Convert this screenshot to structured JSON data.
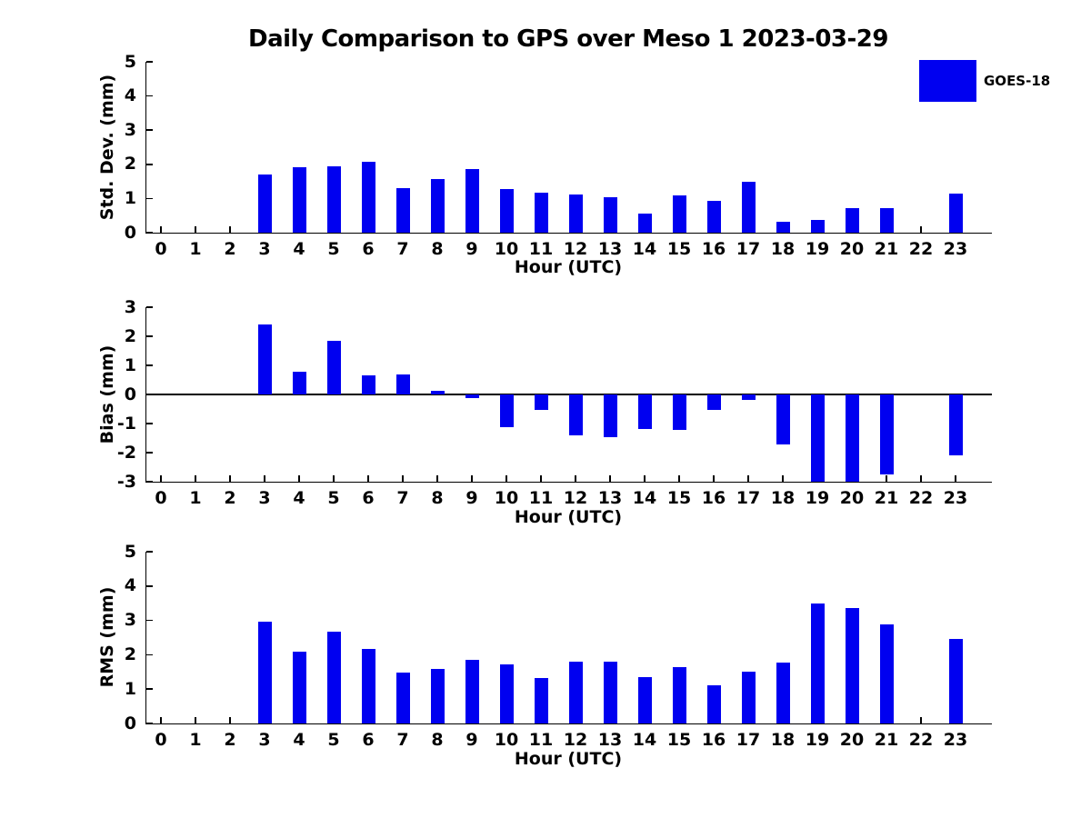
{
  "title": "Daily Comparison to GPS over Meso 1 2023-03-29",
  "legend": {
    "label": "GOES-18",
    "position": "top-right"
  },
  "colors": {
    "bar": "#0000F0",
    "axis": "#000000",
    "background": "#FFFFFF",
    "text": "#000000"
  },
  "chart_data": [
    {
      "type": "bar",
      "series_name": "GOES-18",
      "ylabel": "Std. Dev. (mm)",
      "xlabel": "Hour (UTC)",
      "x": [
        0,
        1,
        2,
        3,
        4,
        5,
        6,
        7,
        8,
        9,
        10,
        11,
        12,
        13,
        14,
        15,
        16,
        17,
        18,
        19,
        20,
        21,
        22,
        23
      ],
      "values": [
        0,
        0,
        0,
        1.69,
        1.92,
        1.95,
        2.07,
        1.29,
        1.56,
        1.85,
        1.27,
        1.18,
        1.11,
        1.03,
        0.55,
        1.1,
        0.93,
        1.48,
        0.31,
        0.37,
        0.72,
        0.72,
        0,
        1.15
      ],
      "ylim": [
        0,
        5
      ],
      "yticks": [
        0,
        1,
        2,
        3,
        4,
        5
      ],
      "grid": false
    },
    {
      "type": "bar",
      "series_name": "GOES-18",
      "ylabel": "Bias (mm)",
      "xlabel": "Hour (UTC)",
      "x": [
        0,
        1,
        2,
        3,
        4,
        5,
        6,
        7,
        8,
        9,
        10,
        11,
        12,
        13,
        14,
        15,
        16,
        17,
        18,
        19,
        20,
        21,
        22,
        23
      ],
      "values": [
        0,
        0,
        0,
        2.42,
        0.77,
        1.83,
        0.66,
        0.69,
        0.12,
        -0.14,
        -1.12,
        -0.52,
        -1.4,
        -1.46,
        -1.19,
        -1.22,
        -0.53,
        -0.2,
        -1.72,
        -3.0,
        -3.0,
        -2.74,
        0,
        -2.1
      ],
      "ylim": [
        -3,
        3
      ],
      "yticks": [
        -3,
        -2,
        -1,
        0,
        1,
        2,
        3
      ],
      "grid": false
    },
    {
      "type": "bar",
      "series_name": "GOES-18",
      "ylabel": "RMS (mm)",
      "xlabel": "Hour (UTC)",
      "x": [
        0,
        1,
        2,
        3,
        4,
        5,
        6,
        7,
        8,
        9,
        10,
        11,
        12,
        13,
        14,
        15,
        16,
        17,
        18,
        19,
        20,
        21,
        22,
        23
      ],
      "values": [
        0,
        0,
        0,
        2.95,
        2.08,
        2.67,
        2.16,
        1.47,
        1.58,
        1.85,
        1.73,
        1.32,
        1.81,
        1.81,
        1.34,
        1.65,
        1.1,
        1.5,
        1.77,
        3.48,
        3.35,
        2.88,
        0,
        2.45
      ],
      "ylim": [
        0,
        5
      ],
      "yticks": [
        0,
        1,
        2,
        3,
        4,
        5
      ],
      "grid": false
    }
  ]
}
